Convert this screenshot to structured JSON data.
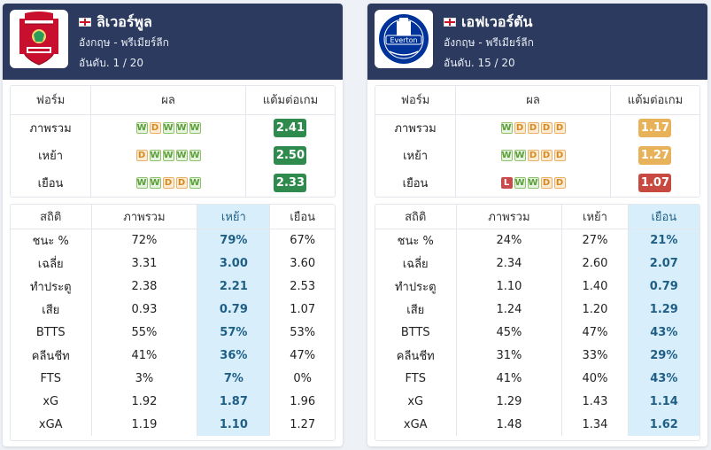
{
  "colors": {
    "header_bg": "#2b3a5e",
    "ppg_green": "#2f8a4d",
    "ppg_orange": "#e8b25b",
    "ppg_red": "#c8493f",
    "highlight_col": "#d8eefb"
  },
  "teams": [
    {
      "name": "ลิเวอร์พูล",
      "league": "อังกฤษ - พรีเมียร์ลีก",
      "rank": "อันดับ. 1 / 20",
      "logo": "liverpool-crest-icon",
      "form_header": {
        "label": "ฟอร์ม",
        "form": "ผล",
        "ppg": "แต้มต่อเกม"
      },
      "form_rows": [
        {
          "label": "ภาพรวม",
          "results": [
            "W",
            "D",
            "W",
            "W",
            "W"
          ],
          "ppg": "2.41",
          "ppg_level": "green"
        },
        {
          "label": "เหย้า",
          "results": [
            "D",
            "W",
            "W",
            "W",
            "W"
          ],
          "ppg": "2.50",
          "ppg_level": "green"
        },
        {
          "label": "เยือน",
          "results": [
            "W",
            "W",
            "D",
            "D",
            "W"
          ],
          "ppg": "2.33",
          "ppg_level": "green"
        }
      ],
      "stats_header": [
        "สถิติ",
        "ภาพรวม",
        "เหย้า",
        "เยือน"
      ],
      "highlight_col": 2,
      "stats_rows": [
        [
          "ชนะ %",
          "72%",
          "79%",
          "67%"
        ],
        [
          "เฉลี่ย",
          "3.31",
          "3.00",
          "3.60"
        ],
        [
          "ทำประตู",
          "2.38",
          "2.21",
          "2.53"
        ],
        [
          "เสีย",
          "0.93",
          "0.79",
          "1.07"
        ],
        [
          "BTTS",
          "55%",
          "57%",
          "53%"
        ],
        [
          "คลีนชีท",
          "41%",
          "36%",
          "47%"
        ],
        [
          "FTS",
          "3%",
          "7%",
          "0%"
        ],
        [
          "xG",
          "1.92",
          "1.87",
          "1.96"
        ],
        [
          "xGA",
          "1.19",
          "1.10",
          "1.27"
        ]
      ]
    },
    {
      "name": "เอฟเวอร์ตัน",
      "league": "อังกฤษ - พรีเมียร์ลีก",
      "rank": "อันดับ. 15 / 20",
      "logo": "everton-crest-icon",
      "form_header": {
        "label": "ฟอร์ม",
        "form": "ผล",
        "ppg": "แต้มต่อเกม"
      },
      "form_rows": [
        {
          "label": "ภาพรวม",
          "results": [
            "W",
            "D",
            "D",
            "D",
            "D"
          ],
          "ppg": "1.17",
          "ppg_level": "orange"
        },
        {
          "label": "เหย้า",
          "results": [
            "W",
            "W",
            "D",
            "D",
            "D"
          ],
          "ppg": "1.27",
          "ppg_level": "orange"
        },
        {
          "label": "เยือน",
          "results": [
            "L",
            "W",
            "W",
            "D",
            "D"
          ],
          "ppg": "1.07",
          "ppg_level": "red"
        }
      ],
      "stats_header": [
        "สถิติ",
        "ภาพรวม",
        "เหย้า",
        "เยือน"
      ],
      "highlight_col": 3,
      "stats_rows": [
        [
          "ชนะ %",
          "24%",
          "27%",
          "21%"
        ],
        [
          "เฉลี่ย",
          "2.34",
          "2.60",
          "2.07"
        ],
        [
          "ทำประตู",
          "1.10",
          "1.40",
          "0.79"
        ],
        [
          "เสีย",
          "1.24",
          "1.20",
          "1.29"
        ],
        [
          "BTTS",
          "45%",
          "47%",
          "43%"
        ],
        [
          "คลีนชีท",
          "31%",
          "33%",
          "29%"
        ],
        [
          "FTS",
          "41%",
          "40%",
          "43%"
        ],
        [
          "xG",
          "1.29",
          "1.43",
          "1.14"
        ],
        [
          "xGA",
          "1.48",
          "1.34",
          "1.62"
        ]
      ]
    }
  ]
}
